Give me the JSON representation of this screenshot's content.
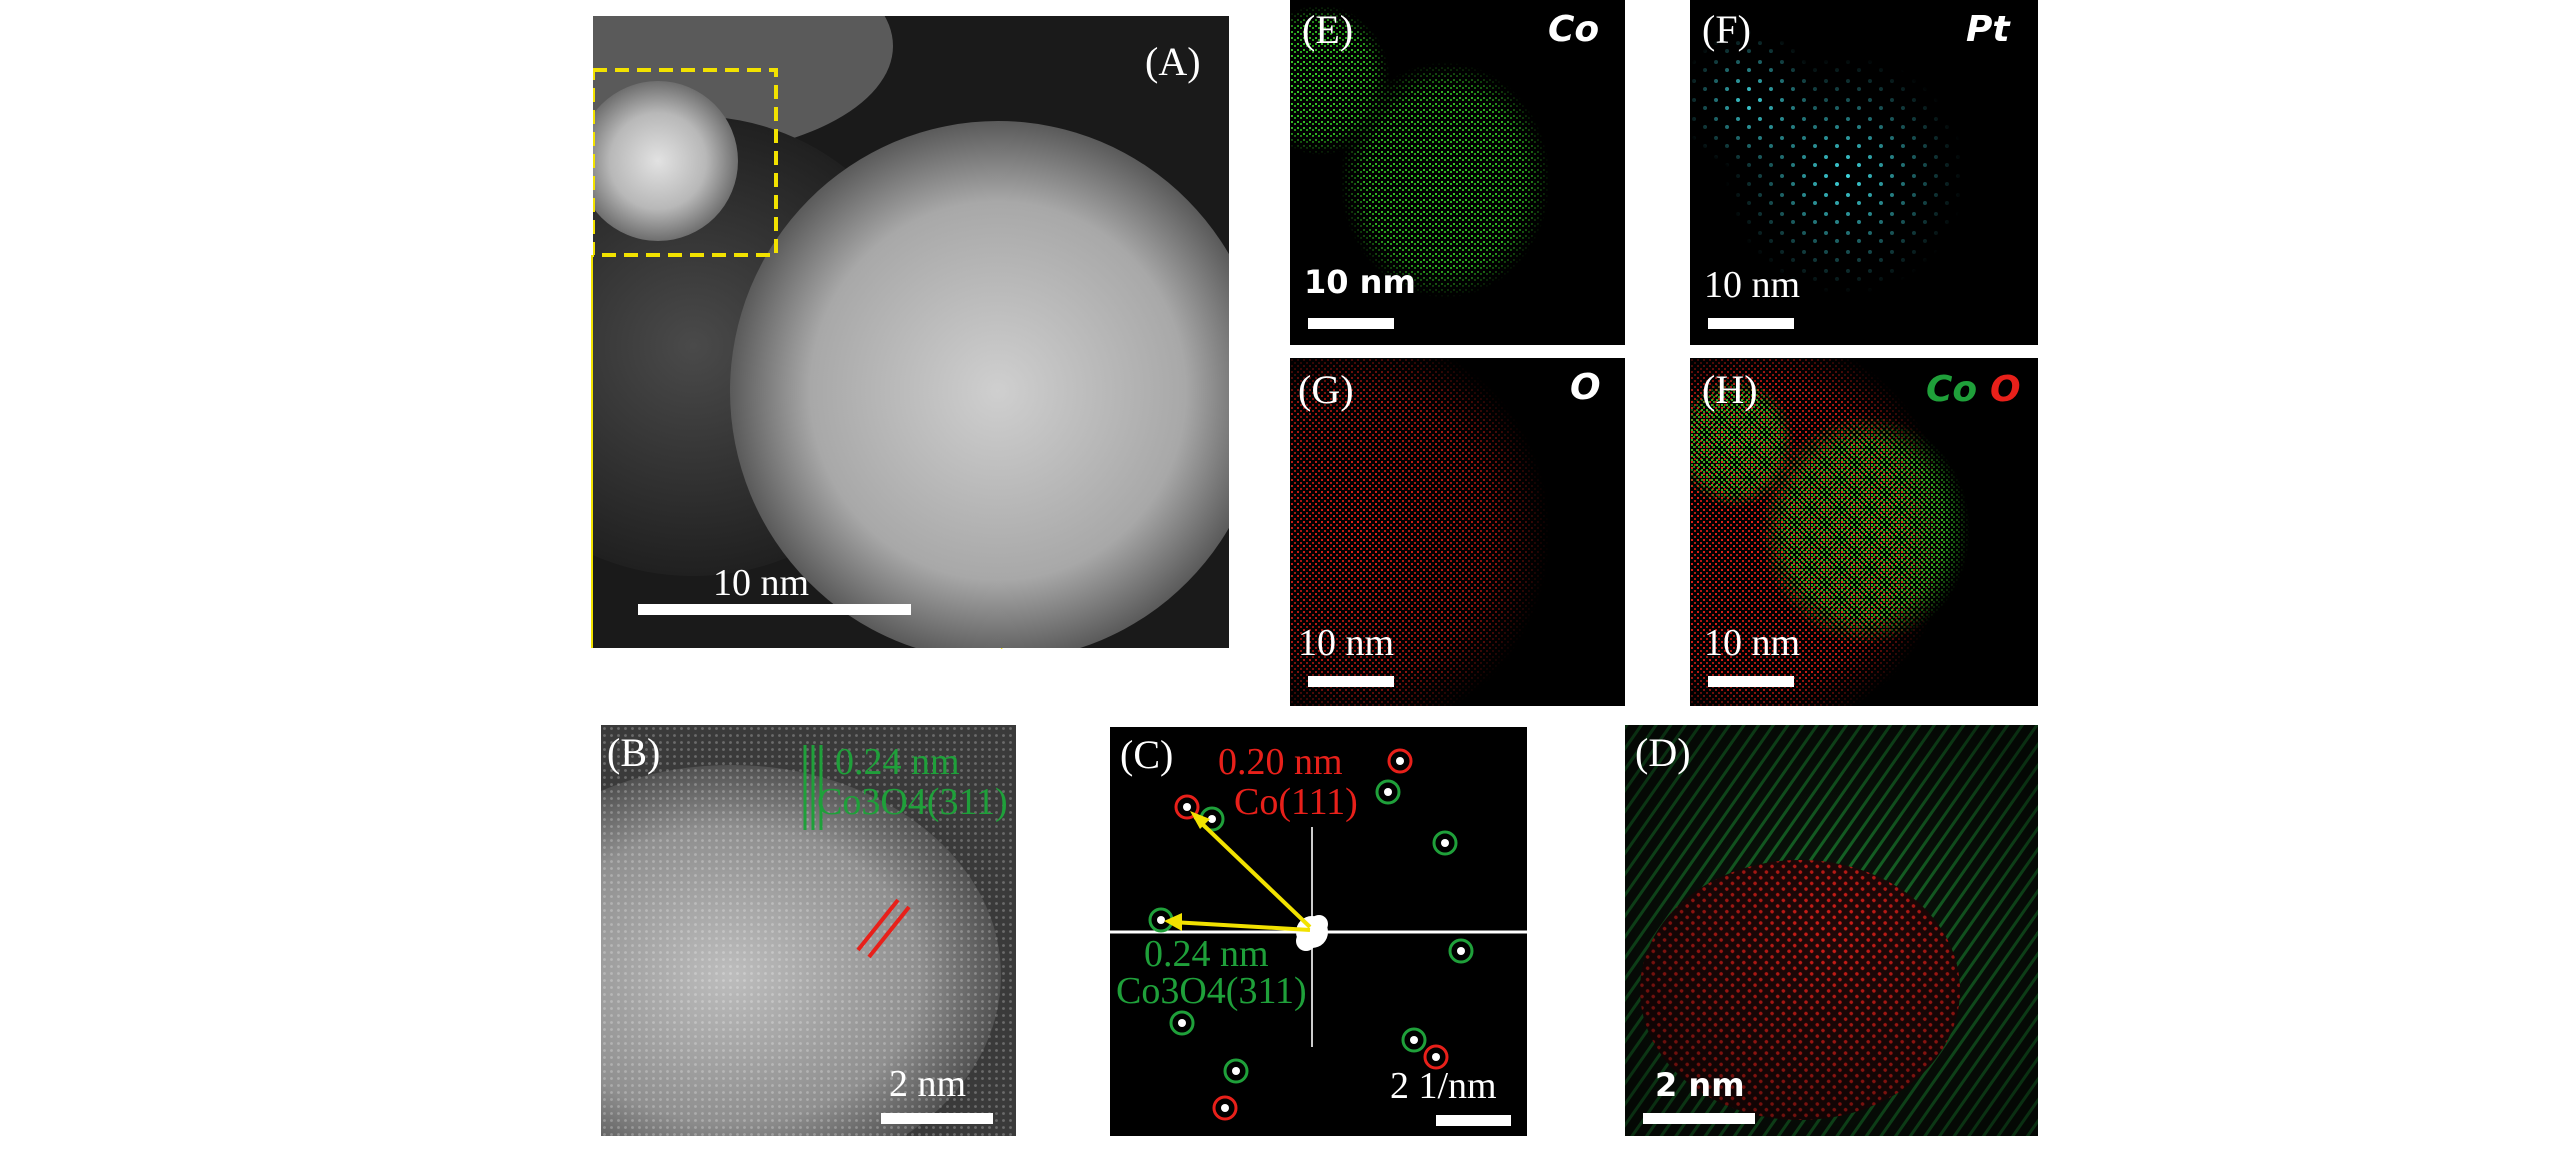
{
  "panels": {
    "A": {
      "label": "(A)",
      "scale": "10 nm"
    },
    "B": {
      "label": "(B)",
      "scale": "2 nm",
      "spacing": "0.24 nm",
      "plane": "Co3O4(311)"
    },
    "C": {
      "label": "(C)",
      "scale": "2 1/nm",
      "red_spacing": "0.20 nm",
      "red_plane": "Co(111)",
      "green_spacing": "0.24 nm",
      "green_plane": "Co3O4(311)"
    },
    "D": {
      "label": "(D)",
      "scale": "2 nm"
    },
    "E": {
      "label": "(E)",
      "element": "Co",
      "scale": "10 nm"
    },
    "F": {
      "label": "(F)",
      "element": "Pt",
      "scale": "10 nm"
    },
    "G": {
      "label": "(G)",
      "element": "O",
      "scale": "10 nm"
    },
    "H": {
      "label": "(H)",
      "element_1": "Co",
      "element_2": "O",
      "scale": "10 nm"
    }
  },
  "colors": {
    "yellow": "#f2e200",
    "green": "#1fa03a",
    "red": "#e8201a",
    "cyan": "#3fd8e0"
  }
}
